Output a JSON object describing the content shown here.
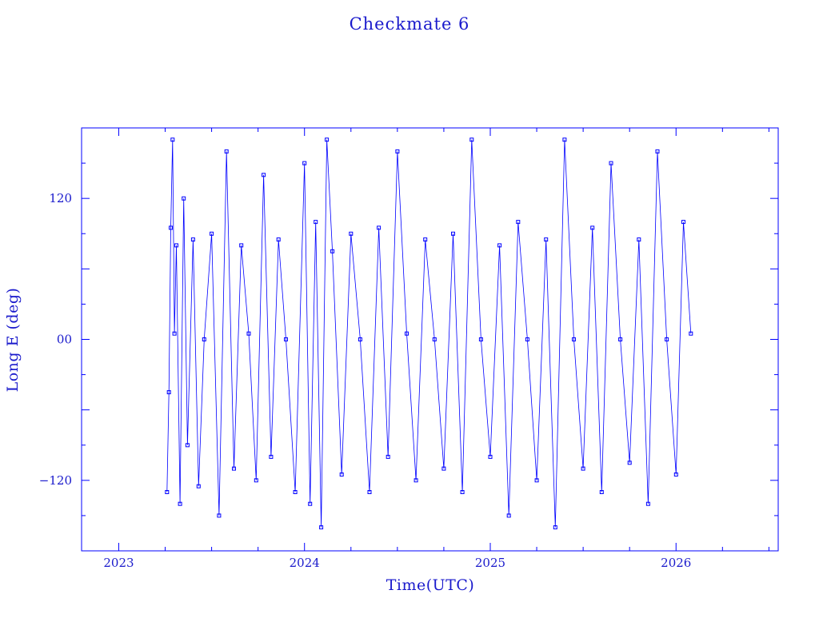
{
  "chart_data": {
    "type": "scatter",
    "title": "Checkmate 6",
    "xlabel": "Time(UTC)",
    "ylabel": "Long E (deg)",
    "xlim": [
      2022.8,
      2026.55
    ],
    "ylim": [
      -180,
      180
    ],
    "x_ticks": [
      {
        "value": 2023,
        "label": "2023"
      },
      {
        "value": 2024,
        "label": "2024"
      },
      {
        "value": 2025,
        "label": "2025"
      },
      {
        "value": 2026,
        "label": "2026"
      }
    ],
    "y_ticks": [
      {
        "value": 120,
        "label": "120"
      },
      {
        "value": 0,
        "label": "00"
      },
      {
        "value": -120,
        "label": "−120"
      }
    ],
    "grid": false,
    "marker": "small open square connected by thin lines",
    "color": "#0000ff",
    "series": [
      {
        "x": [
          2023.26,
          2023.27,
          2023.28,
          2023.29,
          2023.3,
          2023.31,
          2023.33,
          2023.35,
          2023.37,
          2023.4,
          2023.43,
          2023.46,
          2023.5,
          2023.54,
          2023.58,
          2023.62,
          2023.66,
          2023.7,
          2023.74,
          2023.78,
          2023.82,
          2023.86,
          2023.9,
          2023.95,
          2024.0,
          2024.03,
          2024.06,
          2024.09,
          2024.12,
          2024.15,
          2024.2,
          2024.25,
          2024.3,
          2024.35,
          2024.4,
          2024.45,
          2024.5,
          2024.55,
          2024.6,
          2024.65,
          2024.7,
          2024.75,
          2024.8,
          2024.85,
          2024.9,
          2024.95,
          2025.0,
          2025.05,
          2025.1,
          2025.15,
          2025.2,
          2025.25,
          2025.3,
          2025.35,
          2025.4,
          2025.45,
          2025.5,
          2025.55,
          2025.6,
          2025.65,
          2025.7,
          2025.75,
          2025.8,
          2025.85,
          2025.9,
          2025.95,
          2026.0,
          2026.04,
          2026.08
        ],
        "y": [
          -130,
          -45,
          95,
          170,
          5,
          80,
          -140,
          120,
          -90,
          85,
          -125,
          0,
          90,
          -150,
          160,
          -110,
          80,
          5,
          -120,
          140,
          -100,
          85,
          0,
          -130,
          150,
          -140,
          100,
          -160,
          170,
          75,
          -115,
          90,
          0,
          -130,
          95,
          -100,
          160,
          5,
          -120,
          85,
          0,
          -110,
          90,
          -130,
          170,
          0,
          -100,
          80,
          -150,
          100,
          0,
          -120,
          85,
          -160,
          170,
          0,
          -110,
          95,
          -130,
          150,
          0,
          -105,
          85,
          -140,
          160,
          0,
          -115,
          100,
          5
        ]
      }
    ]
  }
}
